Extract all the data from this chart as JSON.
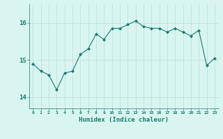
{
  "x": [
    0,
    1,
    2,
    3,
    4,
    5,
    6,
    7,
    8,
    9,
    10,
    11,
    12,
    13,
    14,
    15,
    16,
    17,
    18,
    19,
    20,
    21,
    22,
    23
  ],
  "y": [
    14.9,
    14.7,
    14.6,
    14.2,
    14.65,
    14.7,
    15.15,
    15.3,
    15.7,
    15.55,
    15.85,
    15.85,
    15.95,
    16.05,
    15.9,
    15.85,
    15.85,
    15.75,
    15.85,
    15.75,
    15.65,
    15.8,
    14.85,
    15.05
  ],
  "line_color": "#1a7a6e",
  "bg_color": "#d9f5f0",
  "grid_color": "#b8ddd8",
  "xlabel": "Humidex (Indice chaleur)",
  "yticks": [
    14,
    15,
    16
  ],
  "ylim": [
    13.7,
    16.5
  ],
  "xlim": [
    -0.5,
    23.5
  ]
}
